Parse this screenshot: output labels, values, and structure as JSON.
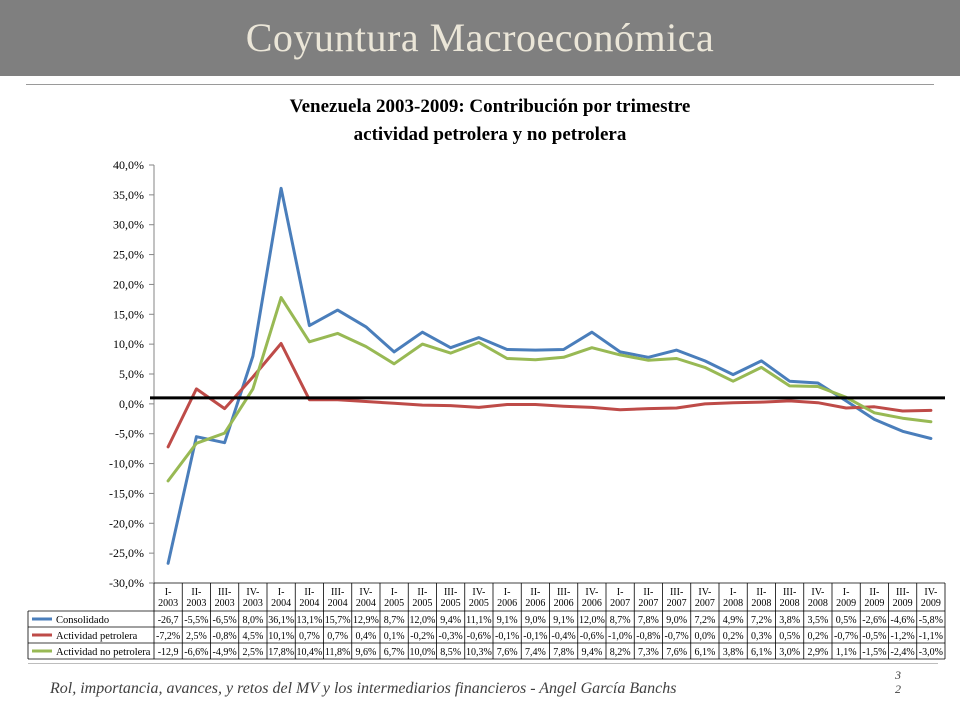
{
  "header": {
    "title": "Coyuntura Macroeconómica"
  },
  "chart_data": {
    "type": "line",
    "title_line1": "Venezuela 2003-2009: Contribución por trimestre",
    "title_line2": "actividad petrolera y no petrolera",
    "ylim": [
      -30,
      40
    ],
    "y_ticks": [
      "40,0%",
      "35,0%",
      "30,0%",
      "25,0%",
      "20,0%",
      "15,0%",
      "10,0%",
      "5,0%",
      "0,0%",
      "-5,0%",
      "-10,0%",
      "-15,0%",
      "-20,0%",
      "-25,0%",
      "-30,0%"
    ],
    "categories_top": [
      "I-",
      "II-",
      "III-",
      "IV-",
      "I-",
      "II-",
      "III-",
      "IV-",
      "I-",
      "II-",
      "III-",
      "IV-",
      "I-",
      "II-",
      "III-",
      "IV-",
      "I-",
      "II-",
      "III-",
      "IV-",
      "I-",
      "II-",
      "III-",
      "IV-",
      "I-",
      "II-",
      "III-",
      "IV-"
    ],
    "categories_bottom": [
      "2003",
      "2003",
      "2003",
      "2003",
      "2004",
      "2004",
      "2004",
      "2004",
      "2005",
      "2005",
      "2005",
      "2005",
      "2006",
      "2006",
      "2006",
      "2006",
      "2007",
      "2007",
      "2007",
      "2007",
      "2008",
      "2008",
      "2008",
      "2008",
      "2009",
      "2009",
      "2009",
      "2009"
    ],
    "baseline_y": 1,
    "legend_position": "bottom-table",
    "grid": false,
    "series": [
      {
        "name": "Consolidado",
        "color": "#4a7ebb",
        "values": [
          -26.7,
          -5.5,
          -6.5,
          8.0,
          36.1,
          13.1,
          15.7,
          12.9,
          8.7,
          12.0,
          9.4,
          11.1,
          9.1,
          9.0,
          9.1,
          12.0,
          8.7,
          7.8,
          9.0,
          7.2,
          4.9,
          7.2,
          3.8,
          3.5,
          0.5,
          -2.6,
          -4.6,
          -5.8
        ],
        "labels": [
          "-26,7",
          "-5,5%",
          "-6,5%",
          "8,0%",
          "36,1%",
          "13,1%",
          "15,7%",
          "12,9%",
          "8,7%",
          "12,0%",
          "9,4%",
          "11,1%",
          "9,1%",
          "9,0%",
          "9,1%",
          "12,0%",
          "8,7%",
          "7,8%",
          "9,0%",
          "7,2%",
          "4,9%",
          "7,2%",
          "3,8%",
          "3,5%",
          "0,5%",
          "-2,6%",
          "-4,6%",
          "-5,8%"
        ]
      },
      {
        "name": "Actividad petrolera",
        "color": "#be4b48",
        "values": [
          -7.2,
          2.5,
          -0.8,
          4.5,
          10.1,
          0.7,
          0.7,
          0.4,
          0.1,
          -0.2,
          -0.3,
          -0.6,
          -0.1,
          -0.1,
          -0.4,
          -0.6,
          -1.0,
          -0.8,
          -0.7,
          0.0,
          0.2,
          0.3,
          0.5,
          0.2,
          -0.7,
          -0.5,
          -1.2,
          -1.1
        ],
        "labels": [
          "-7,2%",
          "2,5%",
          "-0,8%",
          "4,5%",
          "10,1%",
          "0,7%",
          "0,7%",
          "0,4%",
          "0,1%",
          "-0,2%",
          "-0,3%",
          "-0,6%",
          "-0,1%",
          "-0,1%",
          "-0,4%",
          "-0,6%",
          "-1,0%",
          "-0,8%",
          "-0,7%",
          "0,0%",
          "0,2%",
          "0,3%",
          "0,5%",
          "0,2%",
          "-0,7%",
          "-0,5%",
          "-1,2%",
          "-1,1%"
        ]
      },
      {
        "name": "Actividad no petrolera",
        "color": "#98b954",
        "values": [
          -12.9,
          -6.6,
          -4.9,
          2.5,
          17.8,
          10.4,
          11.8,
          9.6,
          6.7,
          10.0,
          8.5,
          10.3,
          7.6,
          7.4,
          7.8,
          9.4,
          8.2,
          7.3,
          7.6,
          6.1,
          3.8,
          6.1,
          3.0,
          2.9,
          1.1,
          -1.5,
          -2.4,
          -3.0
        ],
        "labels": [
          "-12,9",
          "-6,6%",
          "-4,9%",
          "2,5%",
          "17,8%",
          "10,4%",
          "11,8%",
          "9,6%",
          "6,7%",
          "10,0%",
          "8,5%",
          "10,3%",
          "7,6%",
          "7,4%",
          "7,8%",
          "9,4%",
          "8,2%",
          "7,3%",
          "7,6%",
          "6,1%",
          "3,8%",
          "6,1%",
          "3,0%",
          "2,9%",
          "1,1%",
          "-1,5%",
          "-2,4%",
          "-3,0%"
        ]
      }
    ]
  },
  "footer": {
    "text": "Rol, importancia, avances, y retos del MV y los intermediarios financieros - Angel García Banchs",
    "page_line1": "3",
    "page_line2": "2"
  }
}
